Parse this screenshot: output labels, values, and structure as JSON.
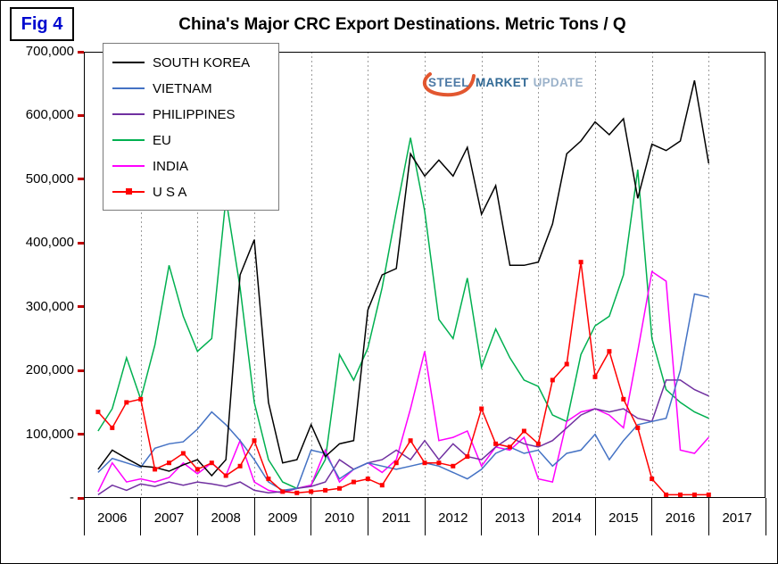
{
  "figure_label": "Fig 4",
  "title": "China's Major CRC Export Destinations. Metric Tons / Q",
  "logo": {
    "steel": "STEEL",
    "market": "MARKET",
    "update": "UPDATE",
    "swoosh_color": "#E0491F"
  },
  "chart_data": {
    "type": "line",
    "title": "China's Major CRC Export Destinations. Metric Tons / Q",
    "ylim": [
      0,
      700000
    ],
    "grid": {
      "vertical_dashed_per_year": true,
      "horizontal": false,
      "color": "#9B9B9B"
    },
    "legend_position": "top-left",
    "axis_tick_color": "#C00000",
    "y_ticks": [
      {
        "label": "700,000",
        "value": 700000
      },
      {
        "label": "600,000",
        "value": 600000
      },
      {
        "label": "500,000",
        "value": 500000
      },
      {
        "label": "400,000",
        "value": 400000
      },
      {
        "label": "300,000",
        "value": 300000
      },
      {
        "label": "200,000",
        "value": 200000
      },
      {
        "label": "100,000",
        "value": 100000
      },
      {
        "label": "-",
        "value": 0
      }
    ],
    "year_labels": [
      "2006",
      "2007",
      "2008",
      "2009",
      "2010",
      "2011",
      "2012",
      "2013",
      "2014",
      "2015",
      "2016",
      "2017"
    ],
    "x": [
      "2006 Q1",
      "2006 Q2",
      "2006 Q3",
      "2006 Q4",
      "2007 Q1",
      "2007 Q2",
      "2007 Q3",
      "2007 Q4",
      "2008 Q1",
      "2008 Q2",
      "2008 Q3",
      "2008 Q4",
      "2009 Q1",
      "2009 Q2",
      "2009 Q3",
      "2009 Q4",
      "2010 Q1",
      "2010 Q2",
      "2010 Q3",
      "2010 Q4",
      "2011 Q1",
      "2011 Q2",
      "2011 Q3",
      "2011 Q4",
      "2012 Q1",
      "2012 Q2",
      "2012 Q3",
      "2012 Q4",
      "2013 Q1",
      "2013 Q2",
      "2013 Q3",
      "2013 Q4",
      "2014 Q1",
      "2014 Q2",
      "2014 Q3",
      "2014 Q4",
      "2015 Q1",
      "2015 Q2",
      "2015 Q3",
      "2015 Q4",
      "2016 Q1",
      "2016 Q2",
      "2016 Q3",
      "2016 Q4"
    ],
    "series": [
      {
        "name": "SOUTH KOREA",
        "color": "#000000",
        "marker": "none",
        "values": [
          45000,
          75000,
          62000,
          50000,
          48000,
          42000,
          52000,
          60000,
          35000,
          60000,
          350000,
          405000,
          150000,
          55000,
          60000,
          115000,
          65000,
          85000,
          90000,
          295000,
          350000,
          360000,
          540000,
          505000,
          530000,
          505000,
          550000,
          445000,
          490000,
          365000,
          365000,
          370000,
          430000,
          540000,
          560000,
          590000,
          570000,
          595000,
          470000,
          555000,
          545000,
          560000,
          655000,
          525000
        ]
      },
      {
        "name": "VIETNAM",
        "color": "#4472C4",
        "marker": "none",
        "values": [
          40000,
          62000,
          55000,
          48000,
          78000,
          85000,
          88000,
          108000,
          135000,
          115000,
          90000,
          60000,
          25000,
          12000,
          15000,
          75000,
          70000,
          30000,
          45000,
          55000,
          50000,
          45000,
          50000,
          55000,
          50000,
          40000,
          30000,
          45000,
          70000,
          80000,
          70000,
          75000,
          50000,
          70000,
          75000,
          100000,
          60000,
          90000,
          115000,
          120000,
          125000,
          200000,
          320000,
          315000
        ]
      },
      {
        "name": "PHILIPPINES",
        "color": "#7030A0",
        "marker": "none",
        "values": [
          5000,
          20000,
          12000,
          22000,
          18000,
          25000,
          20000,
          25000,
          22000,
          18000,
          25000,
          12000,
          8000,
          10000,
          15000,
          18000,
          25000,
          60000,
          45000,
          55000,
          60000,
          75000,
          60000,
          90000,
          60000,
          85000,
          65000,
          60000,
          80000,
          95000,
          85000,
          80000,
          90000,
          110000,
          130000,
          140000,
          135000,
          140000,
          125000,
          120000,
          185000,
          185000,
          170000,
          160000
        ]
      },
      {
        "name": "EU",
        "color": "#00B050",
        "marker": "none",
        "values": [
          105000,
          140000,
          220000,
          155000,
          240000,
          365000,
          285000,
          230000,
          250000,
          470000,
          330000,
          150000,
          60000,
          25000,
          15000,
          20000,
          60000,
          225000,
          185000,
          235000,
          330000,
          450000,
          565000,
          450000,
          280000,
          250000,
          345000,
          205000,
          265000,
          220000,
          185000,
          175000,
          130000,
          120000,
          225000,
          270000,
          285000,
          350000,
          515000,
          250000,
          170000,
          150000,
          135000,
          125000
        ]
      },
      {
        "name": "INDIA",
        "color": "#FF00FF",
        "marker": "none",
        "values": [
          10000,
          55000,
          25000,
          30000,
          25000,
          32000,
          55000,
          38000,
          55000,
          35000,
          90000,
          25000,
          12000,
          8000,
          15000,
          20000,
          75000,
          25000,
          45000,
          55000,
          40000,
          60000,
          140000,
          230000,
          90000,
          95000,
          105000,
          50000,
          80000,
          75000,
          95000,
          30000,
          25000,
          120000,
          135000,
          140000,
          130000,
          110000,
          230000,
          355000,
          340000,
          75000,
          70000,
          95000
        ]
      },
      {
        "name": "U S A",
        "color": "#FF0000",
        "marker": "square",
        "values": [
          135000,
          110000,
          150000,
          155000,
          45000,
          55000,
          70000,
          45000,
          55000,
          35000,
          50000,
          90000,
          30000,
          10000,
          8000,
          10000,
          12000,
          15000,
          25000,
          30000,
          20000,
          55000,
          90000,
          55000,
          55000,
          50000,
          65000,
          140000,
          85000,
          80000,
          105000,
          85000,
          185000,
          210000,
          370000,
          190000,
          230000,
          155000,
          110000,
          30000,
          5000,
          5000,
          5000,
          5000
        ]
      }
    ]
  }
}
